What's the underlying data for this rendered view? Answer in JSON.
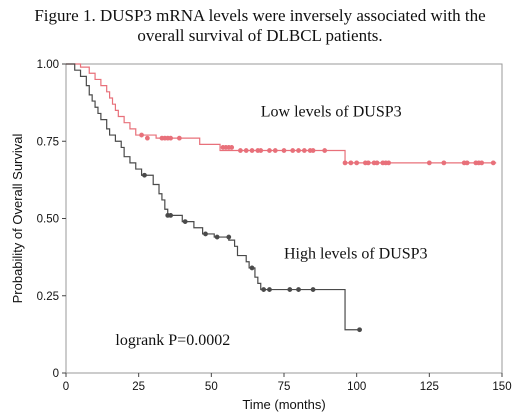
{
  "title": {
    "line1": "Figure 1. DUSP3 mRNA levels were inversely associated with the",
    "line2": "overall survival of DLBCL patients."
  },
  "chart_data": {
    "type": "line",
    "title": "Figure 1. DUSP3 mRNA levels were inversely associated with the overall survival of DLBCL patients.",
    "xlabel": "Time (months)",
    "ylabel": "Probability of Overall Survival",
    "xlim": [
      0,
      150
    ],
    "ylim": [
      0,
      1
    ],
    "xticks": [
      "0",
      "25",
      "50",
      "75",
      "100",
      "125",
      "150"
    ],
    "yticks": [
      "0",
      "0.25",
      "0.50",
      "0.75",
      "1.00"
    ],
    "grid": false,
    "series": [
      {
        "name": "Low levels of DUSP3",
        "color": "#e8707a",
        "steps": [
          [
            0,
            1.0
          ],
          [
            5,
            0.99
          ],
          [
            8,
            0.97
          ],
          [
            10,
            0.95
          ],
          [
            12,
            0.93
          ],
          [
            14,
            0.91
          ],
          [
            15,
            0.89
          ],
          [
            16,
            0.87
          ],
          [
            17,
            0.85
          ],
          [
            18,
            0.83
          ],
          [
            20,
            0.81
          ],
          [
            22,
            0.79
          ],
          [
            24,
            0.77
          ],
          [
            30,
            0.77
          ],
          [
            31,
            0.76
          ],
          [
            45,
            0.76
          ],
          [
            46,
            0.74
          ],
          [
            52,
            0.74
          ],
          [
            53,
            0.72
          ],
          [
            95,
            0.72
          ],
          [
            96,
            0.68
          ],
          [
            148,
            0.68
          ]
        ],
        "censored": [
          [
            26,
            0.77
          ],
          [
            28,
            0.76
          ],
          [
            33,
            0.76
          ],
          [
            34,
            0.76
          ],
          [
            35,
            0.76
          ],
          [
            36,
            0.76
          ],
          [
            39,
            0.76
          ],
          [
            54,
            0.73
          ],
          [
            55,
            0.73
          ],
          [
            56,
            0.73
          ],
          [
            57,
            0.73
          ],
          [
            60,
            0.72
          ],
          [
            62,
            0.72
          ],
          [
            64,
            0.72
          ],
          [
            66,
            0.72
          ],
          [
            67,
            0.72
          ],
          [
            70,
            0.72
          ],
          [
            72,
            0.72
          ],
          [
            75,
            0.72
          ],
          [
            78,
            0.72
          ],
          [
            80,
            0.72
          ],
          [
            82,
            0.72
          ],
          [
            84,
            0.72
          ],
          [
            85,
            0.72
          ],
          [
            89,
            0.72
          ],
          [
            96,
            0.68
          ],
          [
            98,
            0.68
          ],
          [
            100,
            0.68
          ],
          [
            103,
            0.68
          ],
          [
            104,
            0.68
          ],
          [
            106,
            0.68
          ],
          [
            107,
            0.68
          ],
          [
            109,
            0.68
          ],
          [
            110,
            0.68
          ],
          [
            111,
            0.68
          ],
          [
            125,
            0.68
          ],
          [
            130,
            0.68
          ],
          [
            137,
            0.68
          ],
          [
            138,
            0.68
          ],
          [
            141,
            0.68
          ],
          [
            142,
            0.68
          ],
          [
            143,
            0.68
          ],
          [
            147,
            0.68
          ]
        ]
      },
      {
        "name": "High levels of DUSP3",
        "color": "#4a4a4a",
        "steps": [
          [
            0,
            1.0
          ],
          [
            3,
            0.98
          ],
          [
            5,
            0.96
          ],
          [
            7,
            0.93
          ],
          [
            8,
            0.9
          ],
          [
            9,
            0.88
          ],
          [
            10,
            0.86
          ],
          [
            11,
            0.84
          ],
          [
            12,
            0.82
          ],
          [
            14,
            0.79
          ],
          [
            15,
            0.77
          ],
          [
            17,
            0.75
          ],
          [
            19,
            0.73
          ],
          [
            20,
            0.7
          ],
          [
            22,
            0.68
          ],
          [
            24,
            0.66
          ],
          [
            26,
            0.64
          ],
          [
            30,
            0.61
          ],
          [
            32,
            0.58
          ],
          [
            33,
            0.56
          ],
          [
            34,
            0.53
          ],
          [
            35,
            0.51
          ],
          [
            40,
            0.49
          ],
          [
            44,
            0.47
          ],
          [
            47,
            0.45
          ],
          [
            51,
            0.44
          ],
          [
            56,
            0.43
          ],
          [
            58,
            0.41
          ],
          [
            59,
            0.38
          ],
          [
            62,
            0.36
          ],
          [
            63,
            0.34
          ],
          [
            65,
            0.31
          ],
          [
            66,
            0.29
          ],
          [
            67,
            0.27
          ],
          [
            95,
            0.27
          ],
          [
            96,
            0.14
          ],
          [
            101,
            0.14
          ]
        ],
        "censored": [
          [
            27,
            0.64
          ],
          [
            35,
            0.51
          ],
          [
            36,
            0.51
          ],
          [
            41,
            0.49
          ],
          [
            48,
            0.45
          ],
          [
            52,
            0.44
          ],
          [
            56,
            0.44
          ],
          [
            64,
            0.34
          ],
          [
            68,
            0.27
          ],
          [
            70,
            0.27
          ],
          [
            77,
            0.27
          ],
          [
            80,
            0.27
          ],
          [
            85,
            0.27
          ],
          [
            101,
            0.14
          ]
        ]
      }
    ],
    "annotations": [
      {
        "text": "Low levels of DUSP3",
        "x": 67,
        "y": 0.83
      },
      {
        "text": "High levels of DUSP3",
        "x": 75,
        "y": 0.37
      },
      {
        "text": "logrank P=0.0002",
        "x": 17,
        "y": 0.09
      }
    ]
  }
}
